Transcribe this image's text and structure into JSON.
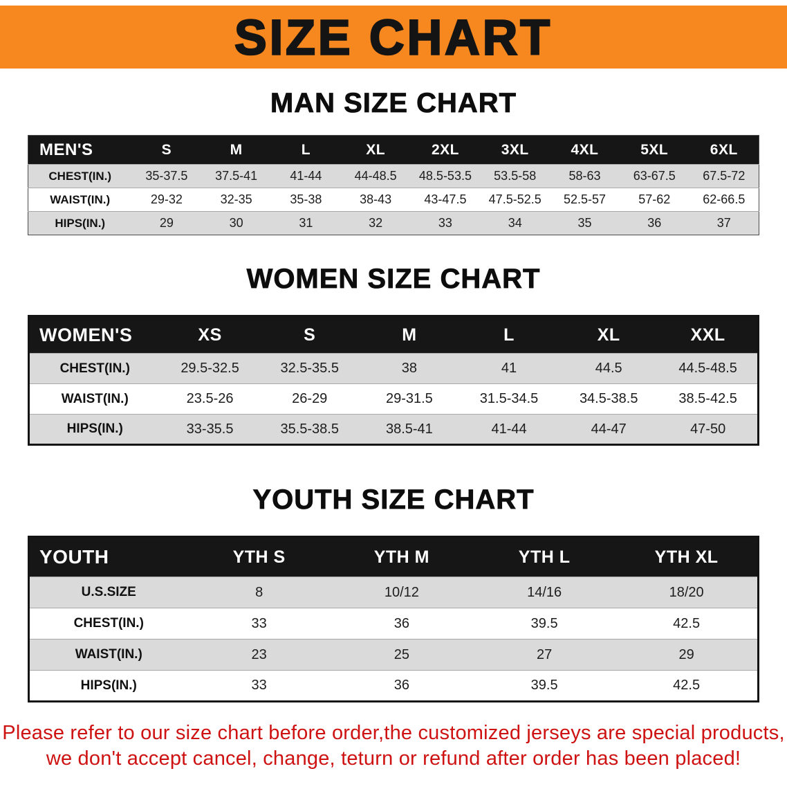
{
  "banner": {
    "title": "SIZE CHART"
  },
  "colors": {
    "banner_bg": "#F6881F",
    "header_bg": "#161616",
    "row_alt": "#DADADA",
    "disclaimer": "#CE1212"
  },
  "sections": [
    {
      "id": "men",
      "heading": "MAN SIZE CHART",
      "columns": [
        "MEN'S",
        "S",
        "M",
        "L",
        "XL",
        "2XL",
        "3XL",
        "4XL",
        "5XL",
        "6XL"
      ],
      "rows": [
        {
          "label": "CHEST(IN.)",
          "values": [
            "35-37.5",
            "37.5-41",
            "41-44",
            "44-48.5",
            "48.5-53.5",
            "53.5-58",
            "58-63",
            "63-67.5",
            "67.5-72"
          ]
        },
        {
          "label": "WAIST(IN.)",
          "values": [
            "29-32",
            "32-35",
            "35-38",
            "38-43",
            "43-47.5",
            "47.5-52.5",
            "52.5-57",
            "57-62",
            "62-66.5"
          ]
        },
        {
          "label": "HIPS(IN.)",
          "values": [
            "29",
            "30",
            "31",
            "32",
            "33",
            "34",
            "35",
            "36",
            "37"
          ]
        }
      ]
    },
    {
      "id": "women",
      "heading": "WOMEN SIZE CHART",
      "columns": [
        "WOMEN'S",
        "XS",
        "S",
        "M",
        "L",
        "XL",
        "XXL"
      ],
      "rows": [
        {
          "label": "CHEST(IN.)",
          "values": [
            "29.5-32.5",
            "32.5-35.5",
            "38",
            "41",
            "44.5",
            "44.5-48.5"
          ]
        },
        {
          "label": "WAIST(IN.)",
          "values": [
            "23.5-26",
            "26-29",
            "29-31.5",
            "31.5-34.5",
            "34.5-38.5",
            "38.5-42.5"
          ]
        },
        {
          "label": "HIPS(IN.)",
          "values": [
            "33-35.5",
            "35.5-38.5",
            "38.5-41",
            "41-44",
            "44-47",
            "47-50"
          ]
        }
      ]
    },
    {
      "id": "youth",
      "heading": "YOUTH SIZE CHART",
      "columns": [
        "YOUTH",
        "YTH S",
        "YTH M",
        "YTH L",
        "YTH XL"
      ],
      "rows": [
        {
          "label": "U.S.SIZE",
          "values": [
            "8",
            "10/12",
            "14/16",
            "18/20"
          ]
        },
        {
          "label": "CHEST(IN.)",
          "values": [
            "33",
            "36",
            "39.5",
            "42.5"
          ]
        },
        {
          "label": "WAIST(IN.)",
          "values": [
            "23",
            "25",
            "27",
            "29"
          ]
        },
        {
          "label": "HIPS(IN.)",
          "values": [
            "33",
            "36",
            "39.5",
            "42.5"
          ]
        }
      ]
    }
  ],
  "disclaimer": {
    "line1": "Please refer to our size chart before order,the customized jerseys are special products,",
    "line2": "we don't accept cancel, change, teturn or refund after order has been placed!"
  }
}
